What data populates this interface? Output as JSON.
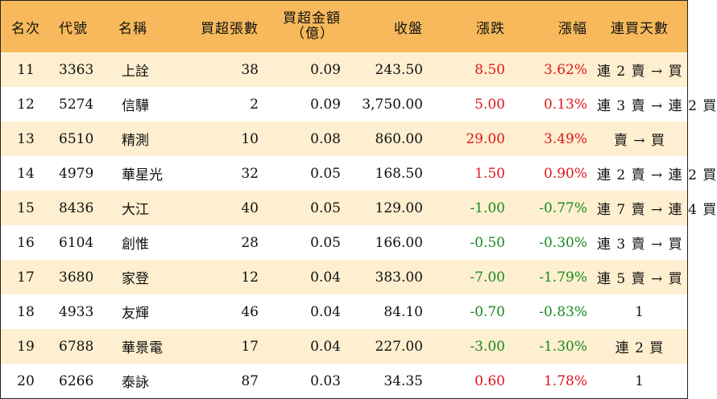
{
  "colors": {
    "header_bg": "#f7b95b",
    "odd_row_bg": "#fdefcf",
    "even_row_bg": "#ffffff",
    "up": "#e0161b",
    "down": "#188a1f"
  },
  "headers": {
    "rank": "名次",
    "code": "代號",
    "name": "名稱",
    "qty": "買超張數",
    "amount_line1": "買超金額",
    "amount_line2": "（億）",
    "close": "收盤",
    "change": "漲跌",
    "pct": "漲幅",
    "days": "連買天數"
  },
  "rows": [
    {
      "rank": "11",
      "code": "3363",
      "name": "上詮",
      "qty": "38",
      "amount": "0.09",
      "close": "243.50",
      "change": "8.50",
      "pct": "3.62%",
      "trend": "up",
      "days": "連 2 賣 → 買"
    },
    {
      "rank": "12",
      "code": "5274",
      "name": "信驊",
      "qty": "2",
      "amount": "0.09",
      "close": "3,750.00",
      "change": "5.00",
      "pct": "0.13%",
      "trend": "up",
      "days": "連 3 賣 → 連 2 買"
    },
    {
      "rank": "13",
      "code": "6510",
      "name": "精測",
      "qty": "10",
      "amount": "0.08",
      "close": "860.00",
      "change": "29.00",
      "pct": "3.49%",
      "trend": "up",
      "days": "賣 → 買"
    },
    {
      "rank": "14",
      "code": "4979",
      "name": "華星光",
      "qty": "32",
      "amount": "0.05",
      "close": "168.50",
      "change": "1.50",
      "pct": "0.90%",
      "trend": "up",
      "days": "連 2 賣 → 連 2 買"
    },
    {
      "rank": "15",
      "code": "8436",
      "name": "大江",
      "qty": "40",
      "amount": "0.05",
      "close": "129.00",
      "change": "-1.00",
      "pct": "-0.77%",
      "trend": "down",
      "days": "連 7 賣 → 連 4 買"
    },
    {
      "rank": "16",
      "code": "6104",
      "name": "創惟",
      "qty": "28",
      "amount": "0.05",
      "close": "166.00",
      "change": "-0.50",
      "pct": "-0.30%",
      "trend": "down",
      "days": "連 3 賣 → 買"
    },
    {
      "rank": "17",
      "code": "3680",
      "name": "家登",
      "qty": "12",
      "amount": "0.04",
      "close": "383.00",
      "change": "-7.00",
      "pct": "-1.79%",
      "trend": "down",
      "days": "連 5 賣 → 買"
    },
    {
      "rank": "18",
      "code": "4933",
      "name": "友輝",
      "qty": "46",
      "amount": "0.04",
      "close": "84.10",
      "change": "-0.70",
      "pct": "-0.83%",
      "trend": "down",
      "days": "1"
    },
    {
      "rank": "19",
      "code": "6788",
      "name": "華景電",
      "qty": "17",
      "amount": "0.04",
      "close": "227.00",
      "change": "-3.00",
      "pct": "-1.30%",
      "trend": "down",
      "days": "連 2 買"
    },
    {
      "rank": "20",
      "code": "6266",
      "name": "泰詠",
      "qty": "87",
      "amount": "0.03",
      "close": "34.35",
      "change": "0.60",
      "pct": "1.78%",
      "trend": "up",
      "days": "1"
    }
  ]
}
